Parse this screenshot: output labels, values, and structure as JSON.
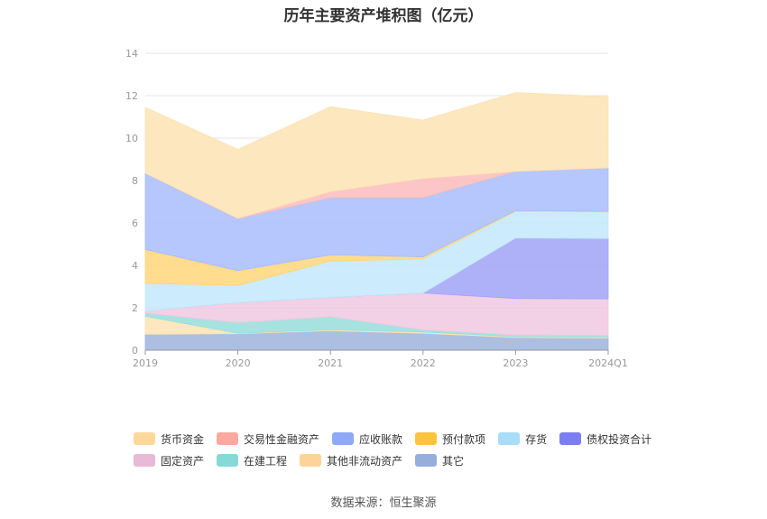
{
  "title": "历年主要资产堆积图（亿元）",
  "source": "数据来源：恒生聚源",
  "chart_data": {
    "type": "area",
    "stacked": true,
    "title": "历年主要资产堆积图（亿元）",
    "categories": [
      "2019",
      "2020",
      "2021",
      "2022",
      "2023",
      "2024Q1"
    ],
    "ylim": [
      0,
      14
    ],
    "yticks": [
      0,
      2,
      4,
      6,
      8,
      10,
      12,
      14
    ],
    "grid": true,
    "legend_position": "bottom",
    "series": [
      {
        "name": "其它",
        "color": "#9fb4dc",
        "values": [
          0.75,
          0.78,
          0.92,
          0.8,
          0.6,
          0.58
        ]
      },
      {
        "name": "其他非流动资产",
        "color": "#fde3b4",
        "values": [
          0.85,
          0.02,
          0.04,
          0.06,
          0.04,
          0.04
        ]
      },
      {
        "name": "在建工程",
        "color": "#97dedb",
        "values": [
          0.15,
          0.5,
          0.62,
          0.1,
          0.08,
          0.08
        ]
      },
      {
        "name": "固定资产",
        "color": "#f0c8e0",
        "values": [
          0.1,
          0.95,
          0.92,
          1.74,
          1.72,
          1.72
        ]
      },
      {
        "name": "债权投资合计",
        "color": "#a1a3f7",
        "values": [
          0.0,
          0.0,
          0.0,
          0.0,
          2.85,
          2.85
        ]
      },
      {
        "name": "存货",
        "color": "#c3e8fb",
        "values": [
          1.3,
          0.8,
          1.7,
          1.6,
          1.25,
          1.25
        ]
      },
      {
        "name": "预付款项",
        "color": "#ffd67a",
        "values": [
          1.6,
          0.7,
          0.3,
          0.1,
          0.04,
          0.03
        ]
      },
      {
        "name": "应收账款",
        "color": "#a8bdfc",
        "values": [
          3.6,
          2.45,
          2.7,
          2.8,
          1.85,
          2.05
        ]
      },
      {
        "name": "交易性金融资产",
        "color": "#fbbcbc",
        "values": [
          0.0,
          0.02,
          0.28,
          0.9,
          0.0,
          0.0
        ]
      },
      {
        "name": "货币资金",
        "color": "#fde3b4",
        "values": [
          3.1,
          3.25,
          4.0,
          2.75,
          3.72,
          3.35
        ]
      }
    ]
  },
  "legend": {
    "rows": [
      [
        {
          "name": "货币资金",
          "color": "#ffd899"
        },
        {
          "name": "交易性金融资产",
          "color": "#f9a99e"
        },
        {
          "name": "应收账款",
          "color": "#8fa8f8"
        },
        {
          "name": "预付款项",
          "color": "#fcc33f"
        },
        {
          "name": "存货",
          "color": "#a8dcf8"
        },
        {
          "name": "债权投资合计",
          "color": "#7b7ef0"
        }
      ],
      [
        {
          "name": "固定资产",
          "color": "#e9b9d8"
        },
        {
          "name": "在建工程",
          "color": "#86d9d6"
        },
        {
          "name": "其他非流动资产",
          "color": "#fdd39a"
        },
        {
          "name": "其它",
          "color": "#96aedb"
        }
      ]
    ]
  }
}
